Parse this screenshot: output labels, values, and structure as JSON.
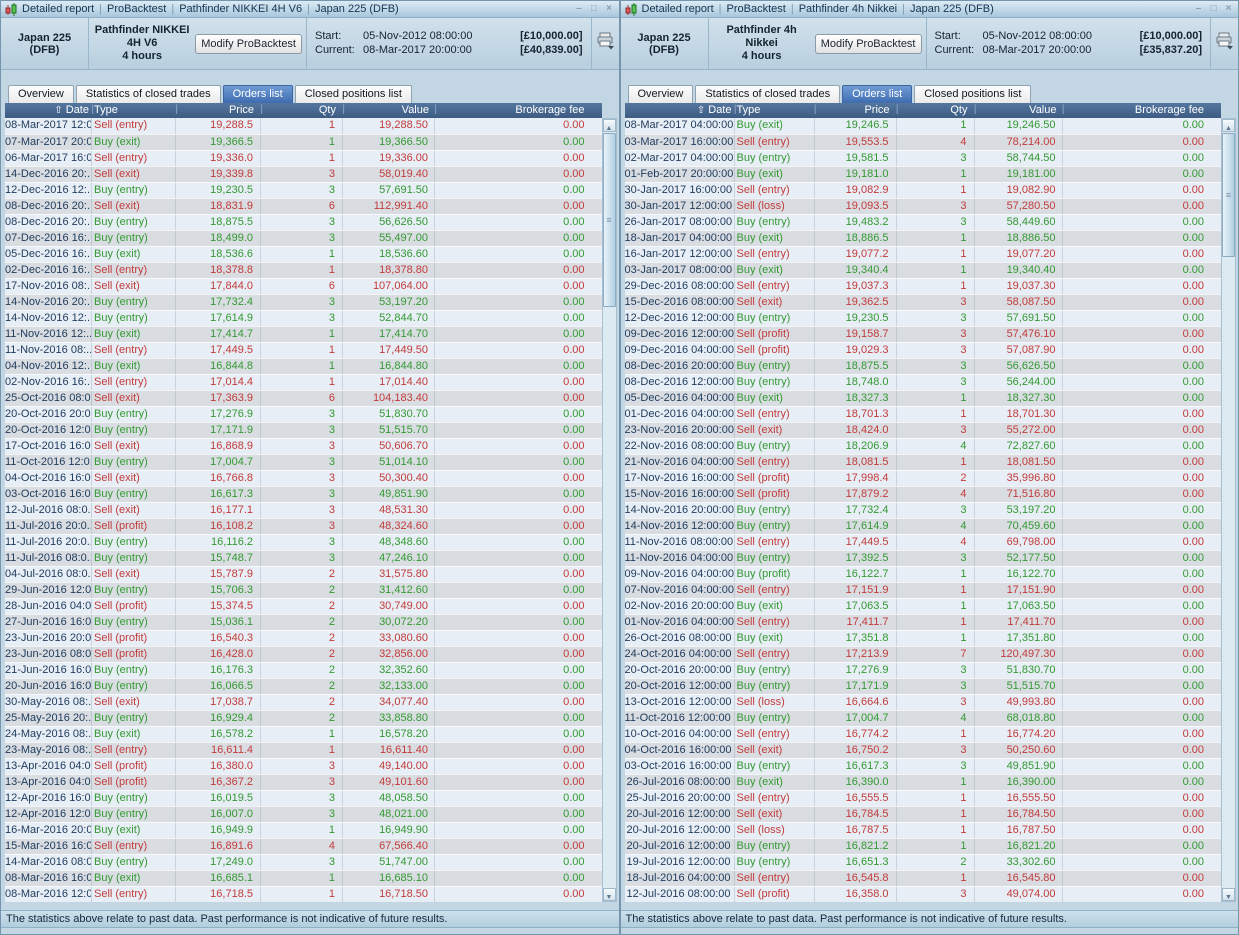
{
  "colors": {
    "buy_green": "#339933",
    "sell_red": "#c23b3b",
    "selected_tab_blue": "#4a7cc4",
    "table_header_blue": "#46648c"
  },
  "windows": [
    {
      "title_parts": [
        "Detailed report",
        "ProBacktest",
        "Pathfinder NIKKEI 4H V6",
        "Japan 225 (DFB)"
      ],
      "header": {
        "instrument": "Japan 225 (DFB)",
        "system_name": "Pathfinder NIKKEI 4H V6",
        "timeframe": "4 hours",
        "modify_button": "Modify ProBacktest",
        "start_label": "Start:",
        "start_date": "05-Nov-2012 08:00:00",
        "start_value": "[£10,000.00]",
        "current_label": "Current:",
        "current_date": "08-Mar-2017 20:00:00",
        "current_value": "[£40,839.00]"
      },
      "tabs": [
        {
          "label": "Overview",
          "selected": false
        },
        {
          "label": "Statistics of closed trades",
          "selected": false
        },
        {
          "label": "Orders list",
          "selected": true
        },
        {
          "label": "Closed positions list",
          "selected": false
        }
      ],
      "table": {
        "columns": [
          "Date",
          "Type",
          "Price",
          "Qty",
          "Value",
          "Brokerage fee"
        ],
        "sort_column": "Date",
        "rows": [
          [
            "08-Mar-2017 12:0...",
            "Sell (entry)",
            "19,288.5",
            "1",
            "19,288.50",
            "0.00"
          ],
          [
            "07-Mar-2017 20:0...",
            "Buy (exit)",
            "19,366.5",
            "1",
            "19,366.50",
            "0.00"
          ],
          [
            "06-Mar-2017 16:0...",
            "Sell (entry)",
            "19,336.0",
            "1",
            "19,336.00",
            "0.00"
          ],
          [
            "14-Dec-2016 20:...",
            "Sell (exit)",
            "19,339.8",
            "3",
            "58,019.40",
            "0.00"
          ],
          [
            "12-Dec-2016 12:...",
            "Buy (entry)",
            "19,230.5",
            "3",
            "57,691.50",
            "0.00"
          ],
          [
            "08-Dec-2016 20:...",
            "Sell (exit)",
            "18,831.9",
            "6",
            "112,991.40",
            "0.00"
          ],
          [
            "08-Dec-2016 20:...",
            "Buy (entry)",
            "18,875.5",
            "3",
            "56,626.50",
            "0.00"
          ],
          [
            "07-Dec-2016 16:...",
            "Buy (entry)",
            "18,499.0",
            "3",
            "55,497.00",
            "0.00"
          ],
          [
            "05-Dec-2016 16:...",
            "Buy (exit)",
            "18,536.6",
            "1",
            "18,536.60",
            "0.00"
          ],
          [
            "02-Dec-2016 16:...",
            "Sell (entry)",
            "18,378.8",
            "1",
            "18,378.80",
            "0.00"
          ],
          [
            "17-Nov-2016 08:...",
            "Sell (exit)",
            "17,844.0",
            "6",
            "107,064.00",
            "0.00"
          ],
          [
            "14-Nov-2016 20:...",
            "Buy (entry)",
            "17,732.4",
            "3",
            "53,197.20",
            "0.00"
          ],
          [
            "14-Nov-2016 12:...",
            "Buy (entry)",
            "17,614.9",
            "3",
            "52,844.70",
            "0.00"
          ],
          [
            "11-Nov-2016 12:...",
            "Buy (exit)",
            "17,414.7",
            "1",
            "17,414.70",
            "0.00"
          ],
          [
            "11-Nov-2016 08:...",
            "Sell (entry)",
            "17,449.5",
            "1",
            "17,449.50",
            "0.00"
          ],
          [
            "04-Nov-2016 12:...",
            "Buy (exit)",
            "16,844.8",
            "1",
            "16,844.80",
            "0.00"
          ],
          [
            "02-Nov-2016 16:...",
            "Sell (entry)",
            "17,014.4",
            "1",
            "17,014.40",
            "0.00"
          ],
          [
            "25-Oct-2016 08:0...",
            "Sell (exit)",
            "17,363.9",
            "6",
            "104,183.40",
            "0.00"
          ],
          [
            "20-Oct-2016 20:0...",
            "Buy (entry)",
            "17,276.9",
            "3",
            "51,830.70",
            "0.00"
          ],
          [
            "20-Oct-2016 12:0...",
            "Buy (entry)",
            "17,171.9",
            "3",
            "51,515.70",
            "0.00"
          ],
          [
            "17-Oct-2016 16:0...",
            "Sell (exit)",
            "16,868.9",
            "3",
            "50,606.70",
            "0.00"
          ],
          [
            "11-Oct-2016 12:0...",
            "Buy (entry)",
            "17,004.7",
            "3",
            "51,014.10",
            "0.00"
          ],
          [
            "04-Oct-2016 16:0...",
            "Sell (exit)",
            "16,766.8",
            "3",
            "50,300.40",
            "0.00"
          ],
          [
            "03-Oct-2016 16:0...",
            "Buy (entry)",
            "16,617.3",
            "3",
            "49,851.90",
            "0.00"
          ],
          [
            "12-Jul-2016 08:0...",
            "Sell (exit)",
            "16,177.1",
            "3",
            "48,531.30",
            "0.00"
          ],
          [
            "11-Jul-2016 20:0...",
            "Sell (profit)",
            "16,108.2",
            "3",
            "48,324.60",
            "0.00"
          ],
          [
            "11-Jul-2016 20:0...",
            "Buy (entry)",
            "16,116.2",
            "3",
            "48,348.60",
            "0.00"
          ],
          [
            "11-Jul-2016 08:0...",
            "Buy (entry)",
            "15,748.7",
            "3",
            "47,246.10",
            "0.00"
          ],
          [
            "04-Jul-2016 08:0...",
            "Sell (exit)",
            "15,787.9",
            "2",
            "31,575.80",
            "0.00"
          ],
          [
            "29-Jun-2016 12:0...",
            "Buy (entry)",
            "15,706.3",
            "2",
            "31,412.60",
            "0.00"
          ],
          [
            "28-Jun-2016 04:0...",
            "Sell (profit)",
            "15,374.5",
            "2",
            "30,749.00",
            "0.00"
          ],
          [
            "27-Jun-2016 16:0...",
            "Buy (entry)",
            "15,036.1",
            "2",
            "30,072.20",
            "0.00"
          ],
          [
            "23-Jun-2016 20:0...",
            "Sell (profit)",
            "16,540.3",
            "2",
            "33,080.60",
            "0.00"
          ],
          [
            "23-Jun-2016 08:0...",
            "Sell (profit)",
            "16,428.0",
            "2",
            "32,856.00",
            "0.00"
          ],
          [
            "21-Jun-2016 16:0...",
            "Buy (entry)",
            "16,176.3",
            "2",
            "32,352.60",
            "0.00"
          ],
          [
            "20-Jun-2016 16:0...",
            "Buy (entry)",
            "16,066.5",
            "2",
            "32,133.00",
            "0.00"
          ],
          [
            "30-May-2016 08:...",
            "Sell (exit)",
            "17,038.7",
            "2",
            "34,077.40",
            "0.00"
          ],
          [
            "25-May-2016 20:...",
            "Buy (entry)",
            "16,929.4",
            "2",
            "33,858.80",
            "0.00"
          ],
          [
            "24-May-2016 08:...",
            "Buy (exit)",
            "16,578.2",
            "1",
            "16,578.20",
            "0.00"
          ],
          [
            "23-May-2016 08:...",
            "Sell (entry)",
            "16,611.4",
            "1",
            "16,611.40",
            "0.00"
          ],
          [
            "13-Apr-2016 04:0...",
            "Sell (profit)",
            "16,380.0",
            "3",
            "49,140.00",
            "0.00"
          ],
          [
            "13-Apr-2016 04:0...",
            "Sell (profit)",
            "16,367.2",
            "3",
            "49,101.60",
            "0.00"
          ],
          [
            "12-Apr-2016 16:0...",
            "Buy (entry)",
            "16,019.5",
            "3",
            "48,058.50",
            "0.00"
          ],
          [
            "12-Apr-2016 12:0...",
            "Buy (entry)",
            "16,007.0",
            "3",
            "48,021.00",
            "0.00"
          ],
          [
            "16-Mar-2016 20:0...",
            "Buy (exit)",
            "16,949.9",
            "1",
            "16,949.90",
            "0.00"
          ],
          [
            "15-Mar-2016 16:0...",
            "Sell (entry)",
            "16,891.6",
            "4",
            "67,566.40",
            "0.00"
          ],
          [
            "14-Mar-2016 08:0...",
            "Buy (entry)",
            "17,249.0",
            "3",
            "51,747.00",
            "0.00"
          ],
          [
            "08-Mar-2016 16:0...",
            "Buy (exit)",
            "16,685.1",
            "1",
            "16,685.10",
            "0.00"
          ],
          [
            "08-Mar-2016 12:0...",
            "Sell (entry)",
            "16,718.5",
            "1",
            "16,718.50",
            "0.00"
          ]
        ]
      },
      "footer_text": "The statistics above relate to past data. Past performance is not indicative of future results."
    },
    {
      "title_parts": [
        "Detailed report",
        "ProBacktest",
        "Pathfinder 4h Nikkei",
        "Japan 225 (DFB)"
      ],
      "header": {
        "instrument": "Japan 225 (DFB)",
        "system_name": "Pathfinder 4h Nikkei",
        "timeframe": "4 hours",
        "modify_button": "Modify ProBacktest",
        "start_label": "Start:",
        "start_date": "05-Nov-2012 08:00:00",
        "start_value": "[£10,000.00]",
        "current_label": "Current:",
        "current_date": "08-Mar-2017 20:00:00",
        "current_value": "[£35,837.20]"
      },
      "tabs": [
        {
          "label": "Overview",
          "selected": false
        },
        {
          "label": "Statistics of closed trades",
          "selected": false
        },
        {
          "label": "Orders list",
          "selected": true
        },
        {
          "label": "Closed positions list",
          "selected": false
        }
      ],
      "table": {
        "columns": [
          "Date",
          "Type",
          "Price",
          "Qty",
          "Value",
          "Brokerage fee"
        ],
        "sort_column": "Date",
        "rows": [
          [
            "08-Mar-2017 04:00:00",
            "Buy (exit)",
            "19,246.5",
            "1",
            "19,246.50",
            "0.00"
          ],
          [
            "03-Mar-2017 16:00:00",
            "Sell (entry)",
            "19,553.5",
            "4",
            "78,214.00",
            "0.00"
          ],
          [
            "02-Mar-2017 04:00:00",
            "Buy (entry)",
            "19,581.5",
            "3",
            "58,744.50",
            "0.00"
          ],
          [
            "01-Feb-2017 20:00:00",
            "Buy (exit)",
            "19,181.0",
            "1",
            "19,181.00",
            "0.00"
          ],
          [
            "30-Jan-2017 16:00:00",
            "Sell (entry)",
            "19,082.9",
            "1",
            "19,082.90",
            "0.00"
          ],
          [
            "30-Jan-2017 12:00:00",
            "Sell (loss)",
            "19,093.5",
            "3",
            "57,280.50",
            "0.00"
          ],
          [
            "26-Jan-2017 08:00:00",
            "Buy (entry)",
            "19,483.2",
            "3",
            "58,449.60",
            "0.00"
          ],
          [
            "18-Jan-2017 04:00:00",
            "Buy (exit)",
            "18,886.5",
            "1",
            "18,886.50",
            "0.00"
          ],
          [
            "16-Jan-2017 12:00:00",
            "Sell (entry)",
            "19,077.2",
            "1",
            "19,077.20",
            "0.00"
          ],
          [
            "03-Jan-2017 08:00:00",
            "Buy (exit)",
            "19,340.4",
            "1",
            "19,340.40",
            "0.00"
          ],
          [
            "29-Dec-2016 08:00:00",
            "Sell (entry)",
            "19,037.3",
            "1",
            "19,037.30",
            "0.00"
          ],
          [
            "15-Dec-2016 08:00:00",
            "Sell (exit)",
            "19,362.5",
            "3",
            "58,087.50",
            "0.00"
          ],
          [
            "12-Dec-2016 12:00:00",
            "Buy (entry)",
            "19,230.5",
            "3",
            "57,691.50",
            "0.00"
          ],
          [
            "09-Dec-2016 12:00:00",
            "Sell (profit)",
            "19,158.7",
            "3",
            "57,476.10",
            "0.00"
          ],
          [
            "09-Dec-2016 04:00:00",
            "Sell (profit)",
            "19,029.3",
            "3",
            "57,087.90",
            "0.00"
          ],
          [
            "08-Dec-2016 20:00:00",
            "Buy (entry)",
            "18,875.5",
            "3",
            "56,626.50",
            "0.00"
          ],
          [
            "08-Dec-2016 12:00:00",
            "Buy (entry)",
            "18,748.0",
            "3",
            "56,244.00",
            "0.00"
          ],
          [
            "05-Dec-2016 04:00:00",
            "Buy (exit)",
            "18,327.3",
            "1",
            "18,327.30",
            "0.00"
          ],
          [
            "01-Dec-2016 04:00:00",
            "Sell (entry)",
            "18,701.3",
            "1",
            "18,701.30",
            "0.00"
          ],
          [
            "23-Nov-2016 20:00:00",
            "Sell (exit)",
            "18,424.0",
            "3",
            "55,272.00",
            "0.00"
          ],
          [
            "22-Nov-2016 08:00:00",
            "Buy (entry)",
            "18,206.9",
            "4",
            "72,827.60",
            "0.00"
          ],
          [
            "21-Nov-2016 04:00:00",
            "Sell (entry)",
            "18,081.5",
            "1",
            "18,081.50",
            "0.00"
          ],
          [
            "17-Nov-2016 16:00:00",
            "Sell (profit)",
            "17,998.4",
            "2",
            "35,996.80",
            "0.00"
          ],
          [
            "15-Nov-2016 16:00:00",
            "Sell (profit)",
            "17,879.2",
            "4",
            "71,516.80",
            "0.00"
          ],
          [
            "14-Nov-2016 20:00:00",
            "Buy (entry)",
            "17,732.4",
            "3",
            "53,197.20",
            "0.00"
          ],
          [
            "14-Nov-2016 12:00:00",
            "Buy (entry)",
            "17,614.9",
            "4",
            "70,459.60",
            "0.00"
          ],
          [
            "11-Nov-2016 08:00:00",
            "Sell (entry)",
            "17,449.5",
            "4",
            "69,798.00",
            "0.00"
          ],
          [
            "11-Nov-2016 04:00:00",
            "Buy (entry)",
            "17,392.5",
            "3",
            "52,177.50",
            "0.00"
          ],
          [
            "09-Nov-2016 04:00:00",
            "Buy (profit)",
            "16,122.7",
            "1",
            "16,122.70",
            "0.00"
          ],
          [
            "07-Nov-2016 04:00:00",
            "Sell (entry)",
            "17,151.9",
            "1",
            "17,151.90",
            "0.00"
          ],
          [
            "02-Nov-2016 20:00:00",
            "Buy (exit)",
            "17,063.5",
            "1",
            "17,063.50",
            "0.00"
          ],
          [
            "01-Nov-2016 04:00:00",
            "Sell (entry)",
            "17,411.7",
            "1",
            "17,411.70",
            "0.00"
          ],
          [
            "26-Oct-2016 08:00:00",
            "Buy (exit)",
            "17,351.8",
            "1",
            "17,351.80",
            "0.00"
          ],
          [
            "24-Oct-2016 04:00:00",
            "Sell (entry)",
            "17,213.9",
            "7",
            "120,497.30",
            "0.00"
          ],
          [
            "20-Oct-2016 20:00:00",
            "Buy (entry)",
            "17,276.9",
            "3",
            "51,830.70",
            "0.00"
          ],
          [
            "20-Oct-2016 12:00:00",
            "Buy (entry)",
            "17,171.9",
            "3",
            "51,515.70",
            "0.00"
          ],
          [
            "13-Oct-2016 12:00:00",
            "Sell (loss)",
            "16,664.6",
            "3",
            "49,993.80",
            "0.00"
          ],
          [
            "11-Oct-2016 12:00:00",
            "Buy (entry)",
            "17,004.7",
            "4",
            "68,018.80",
            "0.00"
          ],
          [
            "10-Oct-2016 04:00:00",
            "Sell (entry)",
            "16,774.2",
            "1",
            "16,774.20",
            "0.00"
          ],
          [
            "04-Oct-2016 16:00:00",
            "Sell (exit)",
            "16,750.2",
            "3",
            "50,250.60",
            "0.00"
          ],
          [
            "03-Oct-2016 16:00:00",
            "Buy (entry)",
            "16,617.3",
            "3",
            "49,851.90",
            "0.00"
          ],
          [
            "26-Jul-2016 08:00:00",
            "Buy (exit)",
            "16,390.0",
            "1",
            "16,390.00",
            "0.00"
          ],
          [
            "25-Jul-2016 20:00:00",
            "Sell (entry)",
            "16,555.5",
            "1",
            "16,555.50",
            "0.00"
          ],
          [
            "20-Jul-2016 12:00:00",
            "Sell (exit)",
            "16,784.5",
            "1",
            "16,784.50",
            "0.00"
          ],
          [
            "20-Jul-2016 12:00:00",
            "Sell (loss)",
            "16,787.5",
            "1",
            "16,787.50",
            "0.00"
          ],
          [
            "20-Jul-2016 12:00:00",
            "Buy (entry)",
            "16,821.2",
            "1",
            "16,821.20",
            "0.00"
          ],
          [
            "19-Jul-2016 12:00:00",
            "Buy (entry)",
            "16,651.3",
            "2",
            "33,302.60",
            "0.00"
          ],
          [
            "18-Jul-2016 04:00:00",
            "Sell (entry)",
            "16,545.8",
            "1",
            "16,545.80",
            "0.00"
          ],
          [
            "12-Jul-2016 08:00:00",
            "Sell (profit)",
            "16,358.0",
            "3",
            "49,074.00",
            "0.00"
          ]
        ]
      },
      "footer_text": "The statistics above relate to past data. Past performance is not indicative of future results."
    }
  ]
}
